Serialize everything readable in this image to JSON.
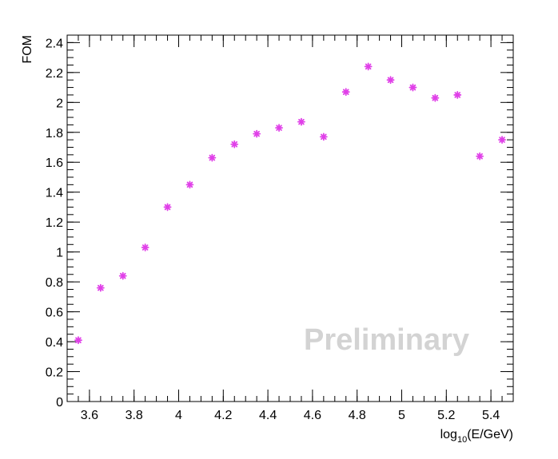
{
  "chart_data": {
    "type": "scatter",
    "xlabel": "log10(E/GeV)",
    "xlabel_parts": {
      "base": "log",
      "subscript": "10",
      "rest": "(E/GeV)"
    },
    "ylabel": "FOM",
    "xlim": [
      3.5,
      5.5
    ],
    "ylim": [
      0,
      2.45
    ],
    "x_ticks": [
      3.6,
      3.8,
      4.0,
      4.2,
      4.4,
      4.6,
      4.8,
      5.0,
      5.2,
      5.4
    ],
    "x_tick_labels": [
      "3.6",
      "3.8",
      "4",
      "4.2",
      "4.4",
      "4.6",
      "4.8",
      "5",
      "5.2",
      "5.4"
    ],
    "y_ticks": [
      0,
      0.2,
      0.4,
      0.6,
      0.8,
      1.0,
      1.2,
      1.4,
      1.6,
      1.8,
      2.0,
      2.2,
      2.4
    ],
    "y_tick_labels": [
      "0",
      "0.2",
      "0.4",
      "0.6",
      "0.8",
      "1",
      "1.2",
      "1.4",
      "1.6",
      "1.8",
      "2",
      "2.2",
      "2.4"
    ],
    "grid": false,
    "series": [
      {
        "marker": "star",
        "color": "#e040e8",
        "x": [
          3.55,
          3.65,
          3.75,
          3.85,
          3.95,
          4.05,
          4.15,
          4.25,
          4.35,
          4.45,
          4.55,
          4.65,
          4.75,
          4.85,
          4.95,
          5.05,
          5.15,
          5.25,
          5.35,
          5.45
        ],
        "y": [
          0.41,
          0.76,
          0.84,
          1.03,
          1.3,
          1.45,
          1.63,
          1.72,
          1.79,
          1.83,
          1.87,
          1.77,
          2.07,
          2.24,
          2.15,
          2.1,
          2.03,
          2.05,
          1.64,
          1.75
        ]
      }
    ],
    "annotations": [
      {
        "text": "Preliminary",
        "color": "#d3d3d3"
      }
    ]
  }
}
